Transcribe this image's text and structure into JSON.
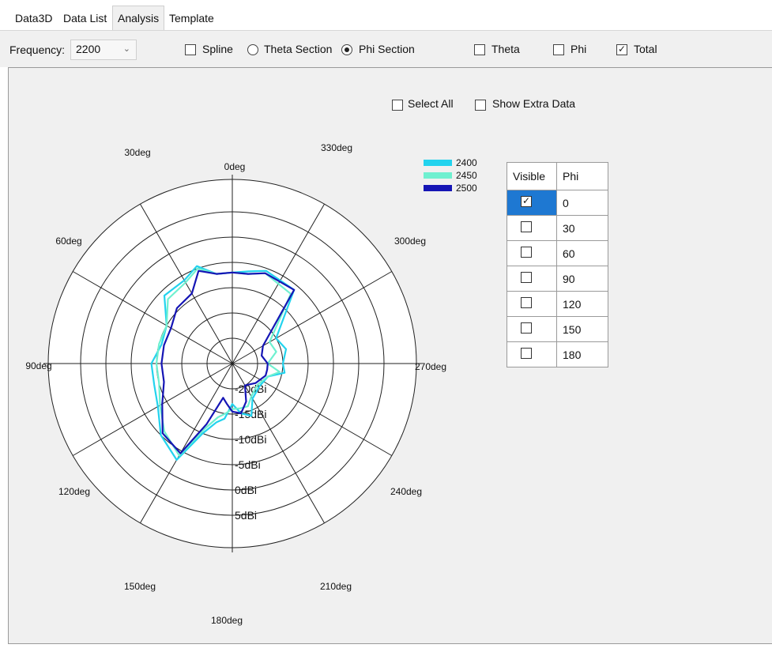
{
  "tabs": [
    {
      "label": "Data3D",
      "active": false
    },
    {
      "label": "Data List",
      "active": false
    },
    {
      "label": "Analysis",
      "active": true
    },
    {
      "label": "Template",
      "active": false
    }
  ],
  "toolbar": {
    "frequency_label": "Frequency:",
    "frequency_value": "2200",
    "spline_label": "Spline",
    "spline_checked": false,
    "theta_section_label": "Theta Section",
    "phi_section_label": "Phi Section",
    "section_selected": "phi",
    "theta_label": "Theta",
    "theta_checked": false,
    "phi_label": "Phi",
    "phi_checked": false,
    "total_label": "Total",
    "total_checked": true
  },
  "options": {
    "select_all_label": "Select All",
    "select_all_checked": false,
    "show_extra_label": "Show Extra Data",
    "show_extra_checked": false
  },
  "phi_table": {
    "headers": [
      "Visible",
      "Phi"
    ],
    "rows": [
      {
        "phi": "0",
        "visible": true,
        "selected": true
      },
      {
        "phi": "30",
        "visible": false,
        "selected": false
      },
      {
        "phi": "60",
        "visible": false,
        "selected": false
      },
      {
        "phi": "90",
        "visible": false,
        "selected": false
      },
      {
        "phi": "120",
        "visible": false,
        "selected": false
      },
      {
        "phi": "150",
        "visible": false,
        "selected": false
      },
      {
        "phi": "180",
        "visible": false,
        "selected": false
      }
    ]
  },
  "chart_data": {
    "type": "polar-line",
    "angle_labels": [
      "0deg",
      "30deg",
      "60deg",
      "90deg",
      "120deg",
      "150deg",
      "180deg",
      "210deg",
      "240deg",
      "270deg",
      "300deg",
      "330deg"
    ],
    "radial_labels": [
      "-20dBi",
      "-15dBi",
      "-10dBi",
      "-5dBi",
      "0dBi",
      "5dBi"
    ],
    "radial_range": [
      -25,
      5
    ],
    "legend_position": "top-right",
    "series": [
      {
        "name": "2400",
        "color": "#22d3ee",
        "points": [
          [
            0,
            -7
          ],
          [
            10,
            -7
          ],
          [
            20,
            -4.5
          ],
          [
            30,
            -6
          ],
          [
            45,
            -6
          ],
          [
            60,
            -10
          ],
          [
            75,
            -10.5
          ],
          [
            90,
            -9
          ],
          [
            105,
            -9
          ],
          [
            120,
            -8
          ],
          [
            135,
            -5
          ],
          [
            150,
            -3
          ],
          [
            157,
            -10
          ],
          [
            165,
            -13
          ],
          [
            172,
            -14
          ],
          [
            180,
            -17
          ],
          [
            190,
            -15
          ],
          [
            200,
            -14
          ],
          [
            210,
            -17
          ],
          [
            230,
            -18
          ],
          [
            250,
            -17.5
          ],
          [
            260,
            -14.5
          ],
          [
            270,
            -15
          ],
          [
            285,
            -14
          ],
          [
            300,
            -15
          ],
          [
            320,
            -6
          ],
          [
            340,
            -5.5
          ],
          [
            350,
            -6.5
          ]
        ]
      },
      {
        "name": "2450",
        "color": "#6ff0d0",
        "points": [
          [
            0,
            -7
          ],
          [
            10,
            -7
          ],
          [
            20,
            -5
          ],
          [
            30,
            -6.5
          ],
          [
            45,
            -7
          ],
          [
            60,
            -10
          ],
          [
            75,
            -10
          ],
          [
            90,
            -10
          ],
          [
            105,
            -10
          ],
          [
            120,
            -8.5
          ],
          [
            135,
            -6
          ],
          [
            150,
            -4
          ],
          [
            157,
            -11
          ],
          [
            165,
            -14
          ],
          [
            172,
            -15
          ],
          [
            180,
            -16
          ],
          [
            190,
            -16
          ],
          [
            200,
            -16
          ],
          [
            210,
            -17.5
          ],
          [
            230,
            -18.5
          ],
          [
            250,
            -17.5
          ],
          [
            260,
            -15.5
          ],
          [
            270,
            -18
          ],
          [
            285,
            -16
          ],
          [
            300,
            -16.5
          ],
          [
            320,
            -7
          ],
          [
            340,
            -6
          ],
          [
            350,
            -7
          ]
        ]
      },
      {
        "name": "2500",
        "color": "#1515b5",
        "points": [
          [
            0,
            -7
          ],
          [
            10,
            -7
          ],
          [
            20,
            -5.5
          ],
          [
            30,
            -9
          ],
          [
            45,
            -9.5
          ],
          [
            60,
            -11
          ],
          [
            75,
            -11
          ],
          [
            90,
            -11
          ],
          [
            105,
            -11
          ],
          [
            120,
            -9
          ],
          [
            135,
            -5.5
          ],
          [
            150,
            -4.5
          ],
          [
            157,
            -12
          ],
          [
            165,
            -18
          ],
          [
            172,
            -17
          ],
          [
            180,
            -15.5
          ],
          [
            190,
            -15
          ],
          [
            200,
            -17
          ],
          [
            210,
            -20
          ],
          [
            230,
            -19
          ],
          [
            250,
            -18
          ],
          [
            260,
            -18
          ],
          [
            270,
            -18
          ],
          [
            285,
            -19
          ],
          [
            300,
            -18
          ],
          [
            320,
            -6
          ],
          [
            340,
            -6
          ],
          [
            350,
            -7
          ]
        ]
      }
    ]
  }
}
